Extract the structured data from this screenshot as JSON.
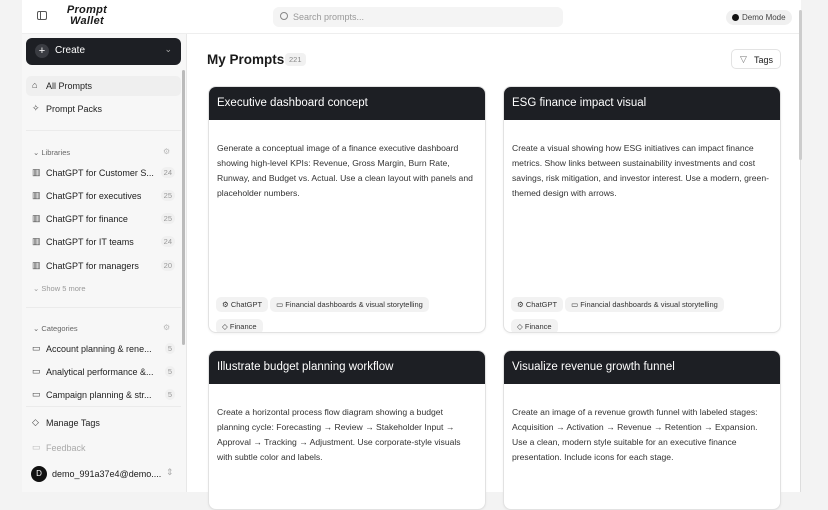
{
  "header": {
    "logo": "Prompt Wallet",
    "search_placeholder": "Search prompts...",
    "demo_mode": "Demo Mode"
  },
  "sidebar": {
    "create": "Create",
    "nav": [
      {
        "label": "All Prompts",
        "icon": "home-icon"
      },
      {
        "label": "Prompt Packs",
        "icon": "sparkle-icon"
      }
    ],
    "libraries_title": "Libraries",
    "libraries": [
      {
        "label": "ChatGPT for Customer S...",
        "count": "24"
      },
      {
        "label": "ChatGPT for executives",
        "count": "25"
      },
      {
        "label": "ChatGPT for finance",
        "count": "25"
      },
      {
        "label": "ChatGPT for IT teams",
        "count": "24"
      },
      {
        "label": "ChatGPT for managers",
        "count": "20"
      }
    ],
    "show_more": "Show 5 more",
    "categories_title": "Categories",
    "categories": [
      {
        "label": "Account planning & rene...",
        "count": "5"
      },
      {
        "label": "Analytical performance &...",
        "count": "5"
      },
      {
        "label": "Campaign planning & str...",
        "count": "5"
      }
    ],
    "manage_tags": "Manage Tags",
    "feedback": "Feedback",
    "user_initial": "D",
    "user": "demo_991a37e4@demo...."
  },
  "main": {
    "title": "My Prompts",
    "count": "221",
    "tags_button": "Tags",
    "cards": [
      {
        "title": "Executive dashboard concept",
        "body": "Generate a conceptual image of a finance executive dashboard showing high-level KPIs: Revenue, Gross Margin, Burn Rate, Runway, and Budget vs. Actual. Use a clean layout with panels and placeholder numbers.",
        "model": "ChatGPT",
        "category": "Financial dashboards & visual storytelling",
        "tag": "Finance"
      },
      {
        "title": "ESG finance impact visual",
        "body": "Create a visual showing how ESG initiatives can impact finance metrics. Show links between sustainability investments and cost savings, risk mitigation, and investor interest. Use a modern, green-themed design with arrows.",
        "model": "ChatGPT",
        "category": "Financial dashboards & visual storytelling",
        "tag": "Finance"
      },
      {
        "title": "Illustrate budget planning workflow",
        "body": "Create a horizontal process flow diagram showing a budget planning cycle: Forecasting → Review → Stakeholder Input → Approval → Tracking → Adjustment. Use corporate-style visuals with subtle color and labels."
      },
      {
        "title": "Visualize revenue growth funnel",
        "body": "Create an image of a revenue growth funnel with labeled stages: Acquisition → Activation → Revenue → Retention → Expansion. Use a clean, modern style suitable for an executive finance presentation. Include icons for each stage."
      }
    ]
  }
}
